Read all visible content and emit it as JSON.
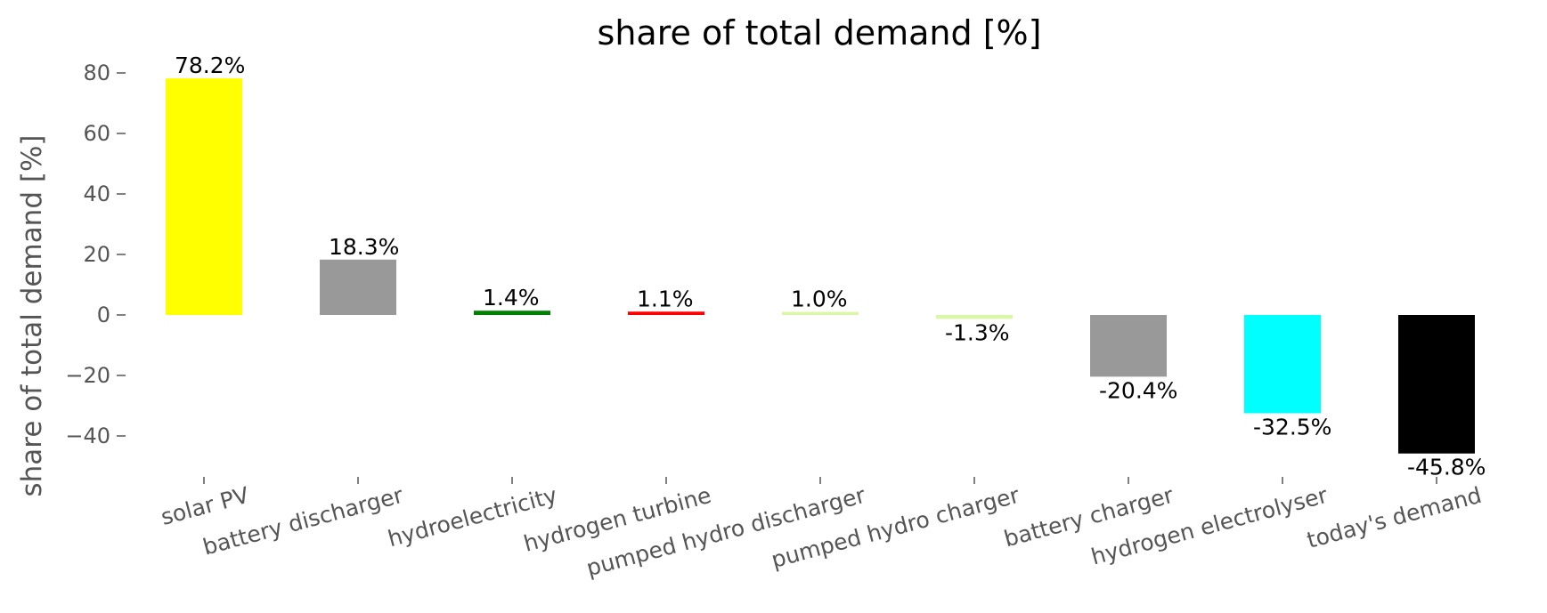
{
  "chart_data": {
    "type": "bar",
    "title": "share of total demand [%]",
    "xlabel": "",
    "ylabel": "share of total demand [%]",
    "ylim": [
      -52,
      84
    ],
    "yticks": [
      80,
      60,
      40,
      20,
      0,
      -20,
      -40
    ],
    "grid": false,
    "categories": [
      "solar PV",
      "battery discharger",
      "hydroelectricity",
      "hydrogen turbine",
      "pumped hydro discharger",
      "pumped hydro charger",
      "battery charger",
      "hydrogen electrolyser",
      "today's demand"
    ],
    "values": [
      78.2,
      18.3,
      1.4,
      1.1,
      1.0,
      -1.3,
      -20.4,
      -32.5,
      -45.8
    ],
    "data_labels": [
      "78.2%",
      "18.3%",
      "1.4%",
      "1.1%",
      "1.0%",
      "-1.3%",
      "-20.4%",
      "-32.5%",
      "-45.8%"
    ],
    "colors": [
      "#ffff00",
      "#999999",
      "#008000",
      "#ff0000",
      "#d9f7a6",
      "#d9f7a6",
      "#999999",
      "#00ffff",
      "#000000"
    ]
  }
}
